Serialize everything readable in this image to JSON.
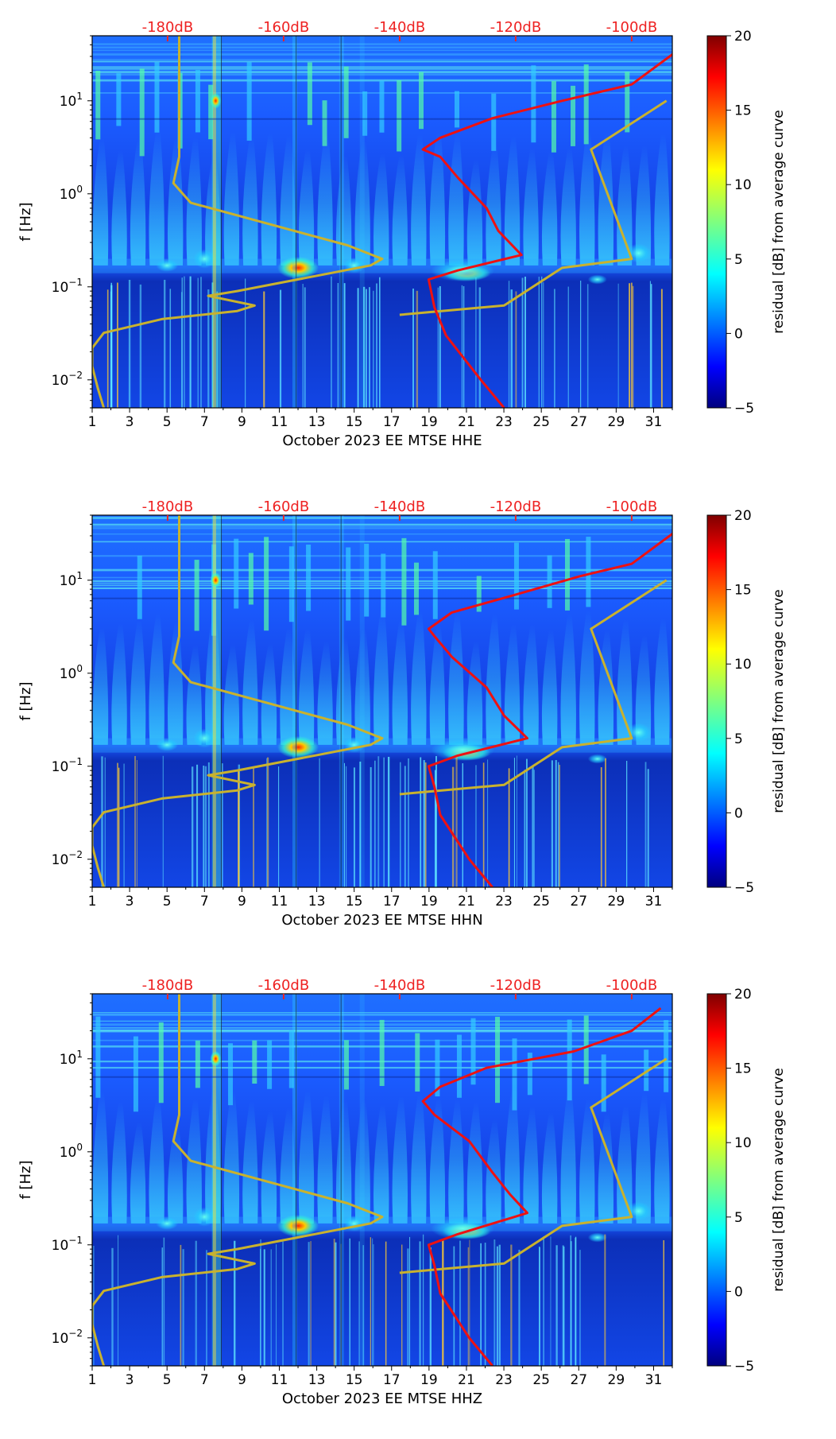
{
  "chart_data": [
    {
      "type": "heatmap",
      "channel": "HHE",
      "xlabel": "October 2023 EE MTSE  HHE",
      "ylabel": "f [Hz]",
      "xlim": [
        1,
        32
      ],
      "ylim": [
        0.005,
        50
      ],
      "yscale": "log",
      "x_ticks": [
        "1",
        "3",
        "5",
        "7",
        "9",
        "11",
        "13",
        "15",
        "17",
        "19",
        "21",
        "23",
        "25",
        "27",
        "29",
        "31"
      ],
      "y_ticks": [
        {
          "value": 10,
          "base": "10",
          "exp": "1"
        },
        {
          "value": 1,
          "base": "10",
          "exp": "0"
        },
        {
          "value": 0.1,
          "base": "10",
          "exp": "−1"
        },
        {
          "value": 0.01,
          "base": "10",
          "exp": "−2"
        }
      ],
      "top_axis": {
        "ticks": [
          "-180dB",
          "-160dB",
          "-140dB",
          "-120dB",
          "-100dB"
        ],
        "db_range": [
          -193,
          -93
        ],
        "color": "#ee2222"
      },
      "colorbar": {
        "label": "residual [dB] from average curve",
        "min": -5,
        "max": 20,
        "ticks": [
          "20",
          "15",
          "10",
          "5",
          "0",
          "−5"
        ]
      },
      "noise_model_curve_db": [
        [
          -191,
          0.005
        ],
        [
          -192,
          0.008
        ],
        [
          -193,
          0.014
        ],
        [
          -193,
          0.022
        ],
        [
          -191,
          0.032
        ],
        [
          -181,
          0.045
        ],
        [
          -168,
          0.055
        ],
        [
          -165,
          0.063
        ],
        [
          -173,
          0.08
        ],
        [
          -168,
          0.09
        ],
        [
          -145,
          0.17
        ],
        [
          -143,
          0.2
        ],
        [
          -149,
          0.28
        ],
        [
          -176,
          0.8
        ],
        [
          -179,
          1.3
        ],
        [
          -178,
          2.5
        ],
        [
          -178,
          20
        ],
        [
          -178,
          50
        ]
      ],
      "high_noise_curve_db": [
        [
          -140,
          0.05
        ],
        [
          -122,
          0.063
        ],
        [
          -112,
          0.16
        ],
        [
          -100,
          0.2
        ],
        [
          -107,
          3
        ],
        [
          -94,
          10
        ]
      ],
      "red_curve_db": [
        [
          -122,
          0.005
        ],
        [
          -126,
          0.01
        ],
        [
          -132,
          0.03
        ],
        [
          -134,
          0.06
        ],
        [
          -135,
          0.12
        ],
        [
          -130,
          0.15
        ],
        [
          -119,
          0.22
        ],
        [
          -123,
          0.4
        ],
        [
          -125,
          0.7
        ],
        [
          -130,
          1.5
        ],
        [
          -133,
          2.5
        ],
        [
          -136,
          3
        ],
        [
          -133,
          4
        ],
        [
          -124,
          6.5
        ],
        [
          -112,
          10
        ],
        [
          -100,
          15
        ],
        [
          -92,
          35
        ]
      ]
    },
    {
      "type": "heatmap",
      "channel": "HHN",
      "xlabel": "October 2023 EE MTSE  HHN",
      "ylabel": "f [Hz]",
      "xlim": [
        1,
        32
      ],
      "ylim": [
        0.005,
        50
      ],
      "yscale": "log",
      "x_ticks": [
        "1",
        "3",
        "5",
        "7",
        "9",
        "11",
        "13",
        "15",
        "17",
        "19",
        "21",
        "23",
        "25",
        "27",
        "29",
        "31"
      ],
      "y_ticks": [
        {
          "value": 10,
          "base": "10",
          "exp": "1"
        },
        {
          "value": 1,
          "base": "10",
          "exp": "0"
        },
        {
          "value": 0.1,
          "base": "10",
          "exp": "−1"
        },
        {
          "value": 0.01,
          "base": "10",
          "exp": "−2"
        }
      ],
      "top_axis": {
        "ticks": [
          "-180dB",
          "-160dB",
          "-140dB",
          "-120dB",
          "-100dB"
        ],
        "db_range": [
          -193,
          -93
        ],
        "color": "#ee2222"
      },
      "colorbar": {
        "label": "residual [dB] from average curve",
        "min": -5,
        "max": 20,
        "ticks": [
          "20",
          "15",
          "10",
          "5",
          "0",
          "−5"
        ]
      },
      "noise_model_curve_db": [
        [
          -191,
          0.005
        ],
        [
          -192,
          0.008
        ],
        [
          -193,
          0.014
        ],
        [
          -193,
          0.022
        ],
        [
          -191,
          0.032
        ],
        [
          -181,
          0.045
        ],
        [
          -168,
          0.055
        ],
        [
          -165,
          0.063
        ],
        [
          -173,
          0.08
        ],
        [
          -168,
          0.09
        ],
        [
          -145,
          0.17
        ],
        [
          -143,
          0.2
        ],
        [
          -149,
          0.28
        ],
        [
          -176,
          0.8
        ],
        [
          -179,
          1.3
        ],
        [
          -178,
          2.5
        ],
        [
          -178,
          20
        ],
        [
          -178,
          50
        ]
      ],
      "high_noise_curve_db": [
        [
          -140,
          0.05
        ],
        [
          -122,
          0.063
        ],
        [
          -112,
          0.16
        ],
        [
          -100,
          0.2
        ],
        [
          -107,
          3
        ],
        [
          -94,
          10
        ]
      ],
      "red_curve_db": [
        [
          -124,
          0.005
        ],
        [
          -128,
          0.01
        ],
        [
          -133,
          0.03
        ],
        [
          -134,
          0.06
        ],
        [
          -135,
          0.1
        ],
        [
          -130,
          0.13
        ],
        [
          -118,
          0.2
        ],
        [
          -122,
          0.35
        ],
        [
          -125,
          0.7
        ],
        [
          -131,
          1.5
        ],
        [
          -134,
          2.5
        ],
        [
          -135,
          3
        ],
        [
          -131,
          4.5
        ],
        [
          -120,
          7
        ],
        [
          -109,
          11
        ],
        [
          -100,
          15
        ],
        [
          -92,
          35
        ]
      ]
    },
    {
      "type": "heatmap",
      "channel": "HHZ",
      "xlabel": "October 2023 EE MTSE  HHZ",
      "ylabel": "f [Hz]",
      "xlim": [
        1,
        32
      ],
      "ylim": [
        0.005,
        50
      ],
      "yscale": "log",
      "x_ticks": [
        "1",
        "3",
        "5",
        "7",
        "9",
        "11",
        "13",
        "15",
        "17",
        "19",
        "21",
        "23",
        "25",
        "27",
        "29",
        "31"
      ],
      "y_ticks": [
        {
          "value": 10,
          "base": "10",
          "exp": "1"
        },
        {
          "value": 1,
          "base": "10",
          "exp": "0"
        },
        {
          "value": 0.1,
          "base": "10",
          "exp": "−1"
        },
        {
          "value": 0.01,
          "base": "10",
          "exp": "−2"
        }
      ],
      "top_axis": {
        "ticks": [
          "-180dB",
          "-160dB",
          "-140dB",
          "-120dB",
          "-100dB"
        ],
        "db_range": [
          -193,
          -93
        ],
        "color": "#ee2222"
      },
      "colorbar": {
        "label": "residual [dB] from average curve",
        "min": -5,
        "max": 20,
        "ticks": [
          "20",
          "15",
          "10",
          "5",
          "0",
          "−5"
        ]
      },
      "noise_model_curve_db": [
        [
          -191,
          0.005
        ],
        [
          -192,
          0.008
        ],
        [
          -193,
          0.014
        ],
        [
          -193,
          0.022
        ],
        [
          -191,
          0.032
        ],
        [
          -181,
          0.045
        ],
        [
          -168,
          0.055
        ],
        [
          -165,
          0.063
        ],
        [
          -173,
          0.08
        ],
        [
          -168,
          0.09
        ],
        [
          -145,
          0.17
        ],
        [
          -143,
          0.2
        ],
        [
          -149,
          0.28
        ],
        [
          -176,
          0.8
        ],
        [
          -179,
          1.3
        ],
        [
          -178,
          2.5
        ],
        [
          -178,
          20
        ],
        [
          -178,
          50
        ]
      ],
      "high_noise_curve_db": [
        [
          -140,
          0.05
        ],
        [
          -122,
          0.063
        ],
        [
          -112,
          0.16
        ],
        [
          -100,
          0.2
        ],
        [
          -107,
          3
        ],
        [
          -94,
          10
        ]
      ],
      "red_curve_db": [
        [
          -124,
          0.005
        ],
        [
          -128,
          0.01
        ],
        [
          -133,
          0.03
        ],
        [
          -134,
          0.06
        ],
        [
          -135,
          0.1
        ],
        [
          -130,
          0.13
        ],
        [
          -118,
          0.22
        ],
        [
          -121,
          0.35
        ],
        [
          -124,
          0.6
        ],
        [
          -128,
          1.3
        ],
        [
          -134,
          2.5
        ],
        [
          -136,
          3.5
        ],
        [
          -133,
          5
        ],
        [
          -125,
          8
        ],
        [
          -110,
          12
        ],
        [
          -100,
          20
        ],
        [
          -95,
          35
        ]
      ]
    }
  ]
}
